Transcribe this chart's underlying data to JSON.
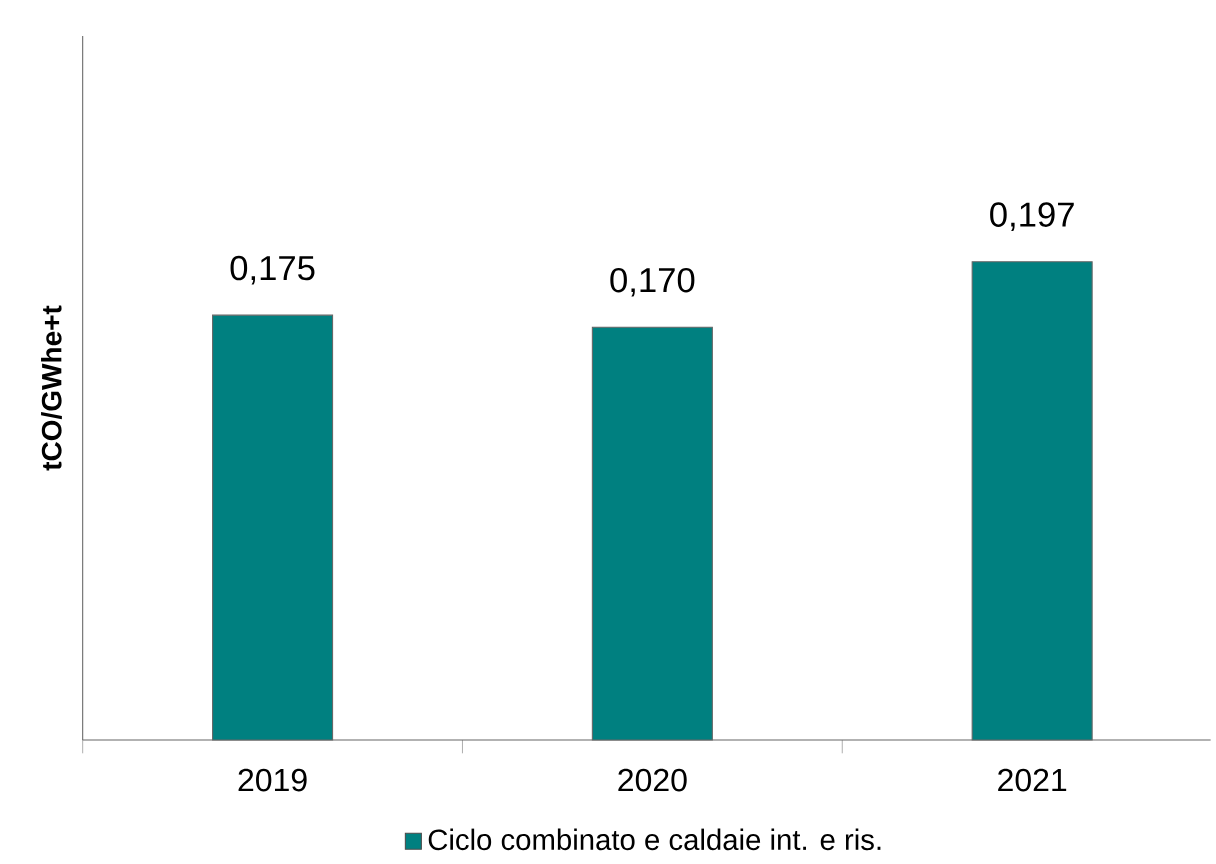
{
  "chart_data": {
    "type": "bar",
    "ylabel": "tCO/GWhe+t",
    "categories": [
      "2019",
      "2020",
      "2021"
    ],
    "series": [
      {
        "name": "Ciclo combinato e caldaie int. e ris.",
        "color": "#008080",
        "values": [
          0.175,
          0.17,
          0.197
        ],
        "value_labels": [
          "0,175",
          "0,170",
          "0,197"
        ]
      }
    ],
    "ylim": [
      0,
      0.29
    ],
    "tick_labels": "x",
    "grid": false,
    "legend": "bottom"
  }
}
